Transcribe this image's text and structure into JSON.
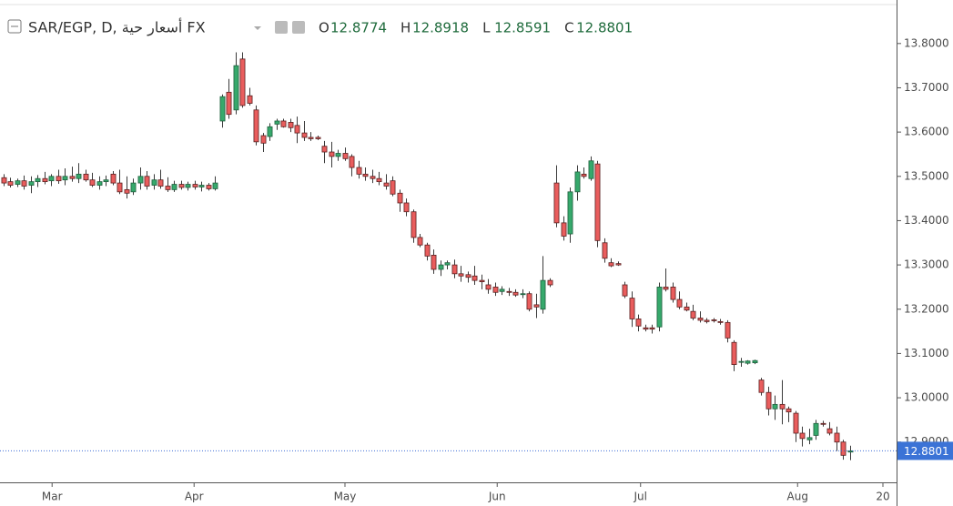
{
  "chart_data": {
    "type": "candlestick",
    "title": "SAR/EGP, D, أسعار حية FX",
    "ohlc_labels": [
      "O",
      "H",
      "L",
      "C"
    ],
    "up_color": "#36a96c",
    "down_color": "#e95d5d",
    "ylim": [
      12.809,
      13.888
    ],
    "yticks": [
      {
        "value": 12.9,
        "label": "12.9000"
      },
      {
        "value": 13.0,
        "label": "13.0000"
      },
      {
        "value": 13.1,
        "label": "13.1000"
      },
      {
        "value": 13.2,
        "label": "13.2000"
      },
      {
        "value": 13.3,
        "label": "13.3000"
      },
      {
        "value": 13.4,
        "label": "13.4000"
      },
      {
        "value": 13.5,
        "label": "13.5000"
      },
      {
        "value": 13.6,
        "label": "13.6000"
      },
      {
        "value": 13.7,
        "label": "13.7000"
      },
      {
        "value": 13.8,
        "label": "13.8000"
      }
    ],
    "xlim": [
      -0.53,
      130.8
    ],
    "xticks": [
      {
        "value": 7.1,
        "label": "Mar"
      },
      {
        "value": 27.9,
        "label": "Apr"
      },
      {
        "value": 50,
        "label": "May"
      },
      {
        "value": 72.3,
        "label": "Jun"
      },
      {
        "value": 93.3,
        "label": "Jul"
      },
      {
        "value": 116.3,
        "label": "Aug"
      },
      {
        "value": 128.8,
        "label": "20"
      }
    ],
    "candles": [
      [
        13.497,
        13.505,
        13.478,
        13.485
      ],
      [
        13.488,
        13.497,
        13.475,
        13.48
      ],
      [
        13.482,
        13.495,
        13.476,
        13.49
      ],
      [
        13.49,
        13.502,
        13.47,
        13.478
      ],
      [
        13.48,
        13.5,
        13.462,
        13.488
      ],
      [
        13.488,
        13.503,
        13.476,
        13.495
      ],
      [
        13.495,
        13.51,
        13.482,
        13.488
      ],
      [
        13.49,
        13.505,
        13.478,
        13.5
      ],
      [
        13.5,
        13.515,
        13.483,
        13.49
      ],
      [
        13.492,
        13.518,
        13.48,
        13.5
      ],
      [
        13.5,
        13.522,
        13.488,
        13.495
      ],
      [
        13.495,
        13.53,
        13.485,
        13.505
      ],
      [
        13.505,
        13.515,
        13.488,
        13.492
      ],
      [
        13.492,
        13.508,
        13.476,
        13.48
      ],
      [
        13.48,
        13.5,
        13.47,
        13.488
      ],
      [
        13.488,
        13.502,
        13.478,
        13.492
      ],
      [
        13.505,
        13.512,
        13.48,
        13.485
      ],
      [
        13.485,
        13.515,
        13.46,
        13.465
      ],
      [
        13.47,
        13.5,
        13.45,
        13.462
      ],
      [
        13.465,
        13.495,
        13.458,
        13.485
      ],
      [
        13.485,
        13.52,
        13.47,
        13.5
      ],
      [
        13.5,
        13.512,
        13.47,
        13.478
      ],
      [
        13.48,
        13.505,
        13.47,
        13.492
      ],
      [
        13.492,
        13.515,
        13.472,
        13.478
      ],
      [
        13.478,
        13.498,
        13.465,
        13.47
      ],
      [
        13.47,
        13.49,
        13.465,
        13.482
      ],
      [
        13.482,
        13.49,
        13.47,
        13.475
      ],
      [
        13.475,
        13.488,
        13.468,
        13.482
      ],
      [
        13.482,
        13.49,
        13.47,
        13.476
      ],
      [
        13.476,
        13.488,
        13.466,
        13.48
      ],
      [
        13.48,
        13.485,
        13.468,
        13.472
      ],
      [
        13.472,
        13.5,
        13.468,
        13.485
      ],
      [
        13.625,
        13.685,
        13.61,
        13.68
      ],
      [
        13.69,
        13.72,
        13.63,
        13.64
      ],
      [
        13.65,
        13.78,
        13.64,
        13.75
      ],
      [
        13.765,
        13.78,
        13.655,
        13.66
      ],
      [
        13.682,
        13.7,
        13.66,
        13.665
      ],
      [
        13.65,
        13.66,
        13.57,
        13.578
      ],
      [
        13.592,
        13.598,
        13.555,
        13.575
      ],
      [
        13.59,
        13.62,
        13.58,
        13.612
      ],
      [
        13.618,
        13.63,
        13.605,
        13.625
      ],
      [
        13.625,
        13.63,
        13.61,
        13.612
      ],
      [
        13.622,
        13.63,
        13.6,
        13.61
      ],
      [
        13.615,
        13.635,
        13.575,
        13.598
      ],
      [
        13.598,
        13.625,
        13.58,
        13.588
      ],
      [
        13.588,
        13.6,
        13.58,
        13.585
      ],
      [
        13.588,
        13.592,
        13.582,
        13.585
      ],
      [
        13.568,
        13.58,
        13.53,
        13.555
      ],
      [
        13.555,
        13.578,
        13.52,
        13.545
      ],
      [
        13.545,
        13.56,
        13.535,
        13.552
      ],
      [
        13.552,
        13.565,
        13.535,
        13.54
      ],
      [
        13.545,
        13.55,
        13.5,
        13.52
      ],
      [
        13.52,
        13.535,
        13.495,
        13.505
      ],
      [
        13.505,
        13.52,
        13.49,
        13.5
      ],
      [
        13.5,
        13.515,
        13.485,
        13.495
      ],
      [
        13.495,
        13.51,
        13.48,
        13.488
      ],
      [
        13.485,
        13.505,
        13.47,
        13.478
      ],
      [
        13.49,
        13.5,
        13.455,
        13.46
      ],
      [
        13.462,
        13.47,
        13.42,
        13.44
      ],
      [
        13.44,
        13.45,
        13.41,
        13.42
      ],
      [
        13.42,
        13.425,
        13.35,
        13.362
      ],
      [
        13.362,
        13.37,
        13.34,
        13.345
      ],
      [
        13.345,
        13.35,
        13.31,
        13.32
      ],
      [
        13.322,
        13.335,
        13.28,
        13.29
      ],
      [
        13.29,
        13.31,
        13.275,
        13.3
      ],
      [
        13.3,
        13.31,
        13.29,
        13.305
      ],
      [
        13.3,
        13.312,
        13.27,
        13.28
      ],
      [
        13.28,
        13.298,
        13.262,
        13.275
      ],
      [
        13.278,
        13.285,
        13.26,
        13.272
      ],
      [
        13.275,
        13.298,
        13.255,
        13.265
      ],
      [
        13.265,
        13.278,
        13.245,
        13.262
      ],
      [
        13.255,
        13.268,
        13.235,
        13.245
      ],
      [
        13.25,
        13.26,
        13.23,
        13.238
      ],
      [
        13.24,
        13.252,
        13.232,
        13.245
      ],
      [
        13.24,
        13.248,
        13.23,
        13.238
      ],
      [
        13.238,
        13.245,
        13.228,
        13.232
      ],
      [
        13.235,
        13.245,
        13.225,
        13.235
      ],
      [
        13.235,
        13.24,
        13.195,
        13.2
      ],
      [
        13.21,
        13.235,
        13.18,
        13.205
      ],
      [
        13.2,
        13.32,
        13.19,
        13.265
      ],
      [
        13.265,
        13.27,
        13.25,
        13.255
      ],
      [
        13.485,
        13.525,
        13.385,
        13.395
      ],
      [
        13.395,
        13.41,
        13.355,
        13.365
      ],
      [
        13.37,
        13.475,
        13.35,
        13.465
      ],
      [
        13.465,
        13.525,
        13.445,
        13.51
      ],
      [
        13.505,
        13.52,
        13.495,
        13.5
      ],
      [
        13.495,
        13.545,
        13.49,
        13.535
      ],
      [
        13.528,
        13.535,
        13.34,
        13.355
      ],
      [
        13.35,
        13.36,
        13.305,
        13.315
      ],
      [
        13.305,
        13.315,
        13.295,
        13.298
      ],
      [
        13.303,
        13.308,
        13.298,
        13.3
      ],
      [
        13.255,
        13.262,
        13.225,
        13.23
      ],
      [
        13.225,
        13.24,
        13.16,
        13.178
      ],
      [
        13.178,
        13.188,
        13.15,
        13.162
      ],
      [
        13.158,
        13.165,
        13.15,
        13.155
      ],
      [
        13.158,
        13.165,
        13.145,
        13.155
      ],
      [
        13.16,
        13.26,
        13.15,
        13.25
      ],
      [
        13.25,
        13.292,
        13.24,
        13.245
      ],
      [
        13.25,
        13.26,
        13.215,
        13.222
      ],
      [
        13.222,
        13.24,
        13.2,
        13.205
      ],
      [
        13.205,
        13.215,
        13.195,
        13.198
      ],
      [
        13.195,
        13.21,
        13.175,
        13.18
      ],
      [
        13.18,
        13.195,
        13.17,
        13.175
      ],
      [
        13.175,
        13.18,
        13.168,
        13.172
      ],
      [
        13.176,
        13.18,
        13.17,
        13.175
      ],
      [
        13.172,
        13.178,
        13.165,
        13.17
      ],
      [
        13.17,
        13.175,
        13.125,
        13.135
      ],
      [
        13.125,
        13.13,
        13.06,
        13.075
      ],
      [
        13.08,
        13.09,
        13.07,
        13.082
      ],
      [
        13.078,
        13.085,
        13.075,
        13.083
      ],
      [
        13.079,
        13.086,
        13.076,
        13.084
      ],
      [
        13.04,
        13.045,
        13.005,
        13.012
      ],
      [
        13.012,
        13.025,
        12.96,
        12.975
      ],
      [
        12.975,
        13.005,
        12.95,
        12.985
      ],
      [
        12.985,
        13.04,
        12.94,
        12.975
      ],
      [
        12.975,
        12.98,
        12.945,
        12.968
      ],
      [
        12.965,
        12.97,
        12.9,
        12.92
      ],
      [
        12.92,
        12.935,
        12.89,
        12.908
      ],
      [
        12.905,
        12.93,
        12.895,
        12.91
      ],
      [
        12.915,
        12.95,
        12.905,
        12.942
      ],
      [
        12.942,
        12.948,
        12.935,
        12.94
      ],
      [
        12.93,
        12.945,
        12.915,
        12.92
      ],
      [
        12.92,
        12.935,
        12.88,
        12.9
      ],
      [
        12.9,
        12.905,
        12.86,
        12.87
      ],
      [
        12.8774,
        12.8918,
        12.8591,
        12.8801
      ]
    ]
  }
}
